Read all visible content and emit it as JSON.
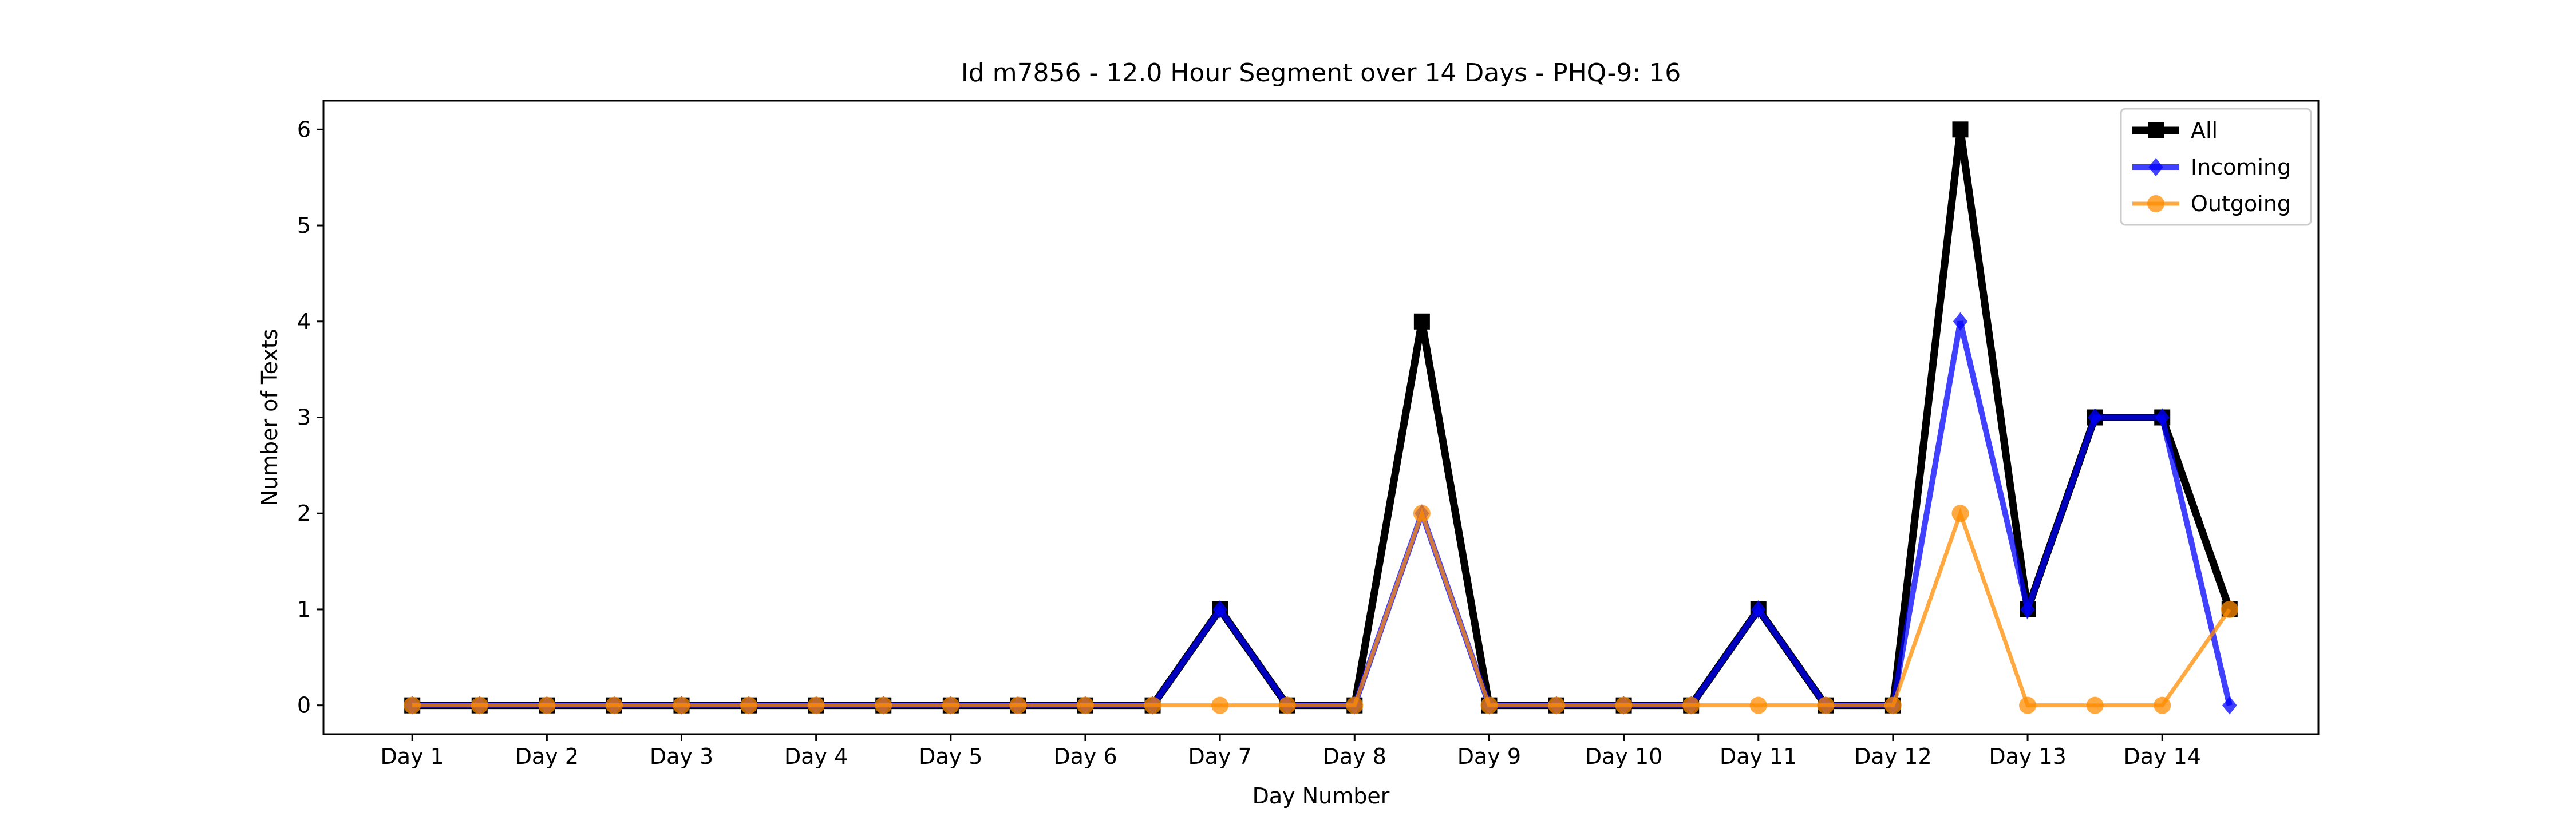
{
  "chart_data": {
    "type": "line",
    "title": "Id m7856 - 12.0 Hour Segment over 14 Days - PHQ-9: 16",
    "xlabel": "Day Number",
    "ylabel": "Number of Texts",
    "x": [
      1,
      1.5,
      2,
      2.5,
      3,
      3.5,
      4,
      4.5,
      5,
      5.5,
      6,
      6.5,
      7,
      7.5,
      8,
      8.5,
      9,
      9.5,
      10,
      10.5,
      11,
      11.5,
      12,
      12.5,
      13,
      13.5,
      14,
      14.5
    ],
    "xticks": [
      1,
      2,
      3,
      4,
      5,
      6,
      7,
      8,
      9,
      10,
      11,
      12,
      13,
      14
    ],
    "xtick_labels": [
      "Day 1",
      "Day 2",
      "Day 3",
      "Day 4",
      "Day 5",
      "Day 6",
      "Day 7",
      "Day 8",
      "Day 9",
      "Day 10",
      "Day 11",
      "Day 12",
      "Day 13",
      "Day 14"
    ],
    "yticks": [
      0,
      1,
      2,
      3,
      4,
      5,
      6
    ],
    "xlim": [
      0.34,
      15.16
    ],
    "ylim": [
      -0.3,
      6.3
    ],
    "grid": false,
    "legend_position": "top-right",
    "series": [
      {
        "name": "All",
        "color": "#000000",
        "marker": "square",
        "values": [
          0,
          0,
          0,
          0,
          0,
          0,
          0,
          0,
          0,
          0,
          0,
          0,
          1,
          0,
          0,
          4,
          0,
          0,
          0,
          0,
          1,
          0,
          0,
          6,
          1,
          3,
          3,
          1
        ]
      },
      {
        "name": "Incoming",
        "color": "#0000ff",
        "marker": "diamond",
        "values": [
          0,
          0,
          0,
          0,
          0,
          0,
          0,
          0,
          0,
          0,
          0,
          0,
          1,
          0,
          0,
          2,
          0,
          0,
          0,
          0,
          1,
          0,
          0,
          4,
          1,
          3,
          3,
          0
        ]
      },
      {
        "name": "Outgoing",
        "color": "#ff8c00",
        "marker": "circle",
        "values": [
          0,
          0,
          0,
          0,
          0,
          0,
          0,
          0,
          0,
          0,
          0,
          0,
          0,
          0,
          0,
          2,
          0,
          0,
          0,
          0,
          0,
          0,
          0,
          2,
          0,
          0,
          0,
          1
        ]
      }
    ]
  }
}
